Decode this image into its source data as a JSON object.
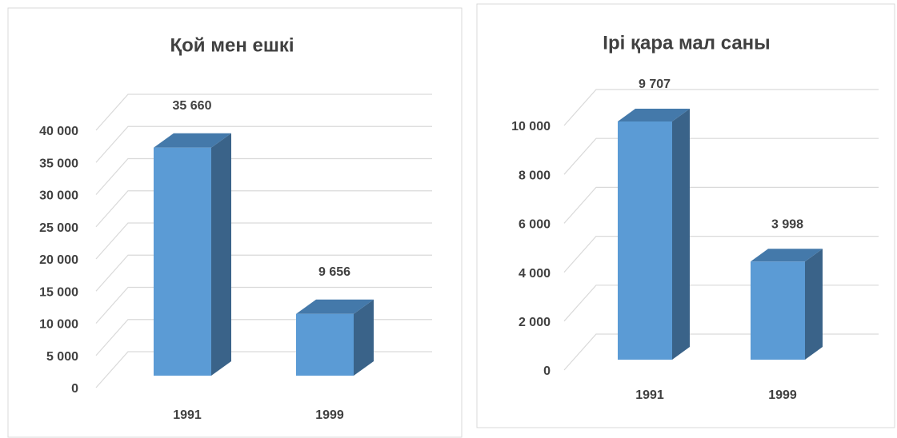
{
  "chart_data": [
    {
      "type": "bar3d",
      "title": "Қой мен ешкі",
      "categories": [
        "1991",
        "1999"
      ],
      "values": [
        35660,
        9656
      ],
      "value_labels": [
        "35 660",
        "9 656"
      ],
      "color": "#5b9bd5",
      "ylim": [
        0,
        40000
      ],
      "yticks": [
        0,
        {
          "value": 5000,
          "label": "5 000"
        },
        {
          "value": 10000,
          "label": "10 000"
        },
        {
          "value": 15000,
          "label": "15 000"
        },
        {
          "value": 20000,
          "label": "20 000"
        },
        {
          "value": 25000,
          "label": "25 000"
        },
        {
          "value": 30000,
          "label": "30 000"
        },
        {
          "value": 35000,
          "label": "35 000"
        },
        {
          "value": 40000,
          "label": "40 000"
        }
      ],
      "grid": true
    },
    {
      "type": "bar3d",
      "title": "Ірі қара мал саны",
      "categories": [
        "1991",
        "1999"
      ],
      "values": [
        9707,
        3998
      ],
      "value_labels": [
        "9 707",
        "3 998"
      ],
      "color": "#5b9bd5",
      "ylim": [
        0,
        10000
      ],
      "yticks": [
        0,
        {
          "value": 2000,
          "label": "2 000"
        },
        {
          "value": 4000,
          "label": "4 000"
        },
        {
          "value": 6000,
          "label": "6 000"
        },
        {
          "value": 8000,
          "label": "8 000"
        },
        {
          "value": 10000,
          "label": "10 000"
        }
      ],
      "grid": true
    }
  ]
}
